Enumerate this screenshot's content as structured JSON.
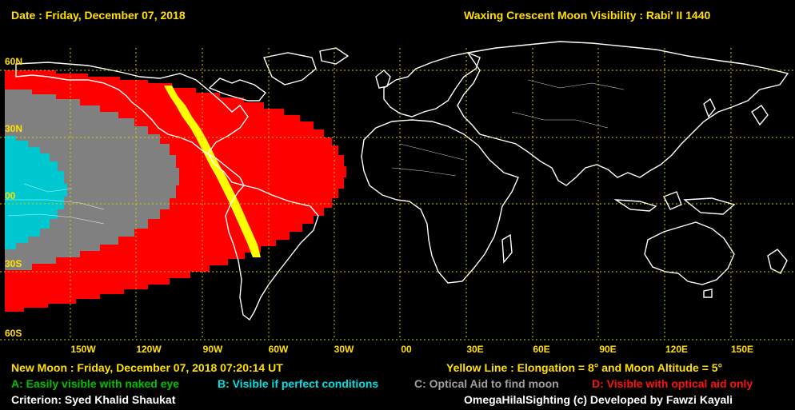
{
  "header": {
    "date": "Date : Friday, December 07, 2018",
    "title": "Waxing Crescent Moon Visibility : Rabi' II 1440"
  },
  "latitudes": [
    "60N",
    "30N",
    "00",
    "30S",
    "60S"
  ],
  "longitudes": [
    "150W",
    "120W",
    "90W",
    "60W",
    "30W",
    "00",
    "30E",
    "60E",
    "90E",
    "120E",
    "150E"
  ],
  "footer": {
    "new_moon": "New Moon : Friday, December 07, 2018  07:20:14  UT",
    "yellow_line": "Yellow Line : Elongation = 8° and Moon Altitude = 5°",
    "legend_a": "A: Easily visible with naked eye",
    "legend_b": "B: Visible if perfect conditions",
    "legend_c": "C: Optical Aid to find moon",
    "legend_d": "D: Visible with optical aid only",
    "criterion": "Criterion: Syed Khalid Shaukat",
    "credit": "OmegaHilalSighting  (c)  Developed by Fawzi Kayali"
  },
  "colors": {
    "zone_a": "#00c000",
    "zone_b": "#00c8d0",
    "zone_c": "#808080",
    "zone_d": "#ff0000",
    "yellow_line": "#ffff00",
    "grid": "#d0d000",
    "land_outline": "#ffffff"
  }
}
